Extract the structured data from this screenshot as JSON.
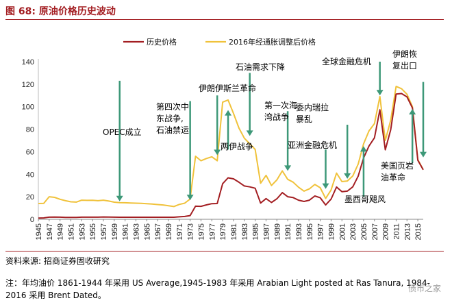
{
  "figure": {
    "title": "图 68:  原油价格历史波动",
    "source": "资料来源:  招商证券固收研究",
    "note": "注：年均油价 1861-1944 年采用 US Average,1945-1983 年采用 Arabian Light posted at Ras Tanura, 1984-2016 采用 Brent Dated。",
    "watermark": "债市之家"
  },
  "colors": {
    "nominal": "#a31e22",
    "real": "#f0c23b",
    "arrow": "#3d9878",
    "accent": "#a31e22"
  },
  "chart_data": {
    "type": "line",
    "title": "",
    "xlabel": "",
    "ylabel": "",
    "ylim": [
      0,
      140
    ],
    "yticks": [
      0,
      20,
      40,
      60,
      80,
      100,
      120,
      140
    ],
    "xlim": [
      1945,
      2016
    ],
    "xticks": [
      1945,
      1947,
      1949,
      1951,
      1953,
      1955,
      1957,
      1959,
      1961,
      1963,
      1965,
      1967,
      1969,
      1971,
      1973,
      1975,
      1977,
      1979,
      1981,
      1983,
      1985,
      1987,
      1989,
      1991,
      1993,
      1995,
      1997,
      1999,
      2001,
      2003,
      2005,
      2007,
      2009,
      2011,
      2013,
      2015
    ],
    "grid": false,
    "legend_position": "top-center",
    "series": [
      {
        "name": "历史价格",
        "color": "#a31e22",
        "points": [
          [
            1945,
            1.05
          ],
          [
            1946,
            1.2
          ],
          [
            1947,
            1.9
          ],
          [
            1948,
            2.0
          ],
          [
            1949,
            1.9
          ],
          [
            1950,
            1.7
          ],
          [
            1951,
            1.7
          ],
          [
            1952,
            1.7
          ],
          [
            1953,
            1.9
          ],
          [
            1954,
            1.9
          ],
          [
            1955,
            1.9
          ],
          [
            1956,
            1.9
          ],
          [
            1957,
            2.1
          ],
          [
            1958,
            2.0
          ],
          [
            1959,
            1.9
          ],
          [
            1960,
            1.8
          ],
          [
            1961,
            1.8
          ],
          [
            1962,
            1.8
          ],
          [
            1963,
            1.8
          ],
          [
            1964,
            1.8
          ],
          [
            1965,
            1.8
          ],
          [
            1966,
            1.8
          ],
          [
            1967,
            1.8
          ],
          [
            1968,
            1.8
          ],
          [
            1969,
            1.8
          ],
          [
            1970,
            1.8
          ],
          [
            1971,
            2.2
          ],
          [
            1972,
            2.5
          ],
          [
            1973,
            3.3
          ],
          [
            1974,
            11.6
          ],
          [
            1975,
            11.5
          ],
          [
            1976,
            12.8
          ],
          [
            1977,
            13.9
          ],
          [
            1978,
            14.0
          ],
          [
            1979,
            31.6
          ],
          [
            1980,
            36.8
          ],
          [
            1981,
            35.9
          ],
          [
            1982,
            32.9
          ],
          [
            1983,
            29.6
          ],
          [
            1984,
            28.8
          ],
          [
            1985,
            27.6
          ],
          [
            1986,
            14.4
          ],
          [
            1987,
            18.4
          ],
          [
            1988,
            14.9
          ],
          [
            1989,
            18.2
          ],
          [
            1990,
            23.7
          ],
          [
            1991,
            20.0
          ],
          [
            1992,
            19.3
          ],
          [
            1993,
            17.0
          ],
          [
            1994,
            15.8
          ],
          [
            1995,
            17.0
          ],
          [
            1996,
            20.7
          ],
          [
            1997,
            19.1
          ],
          [
            1998,
            12.7
          ],
          [
            1999,
            17.9
          ],
          [
            2000,
            28.7
          ],
          [
            2001,
            24.5
          ],
          [
            2002,
            25.0
          ],
          [
            2003,
            28.8
          ],
          [
            2004,
            38.3
          ],
          [
            2005,
            54.5
          ],
          [
            2006,
            65.1
          ],
          [
            2007,
            72.4
          ],
          [
            2008,
            97.3
          ],
          [
            2009,
            61.7
          ],
          [
            2010,
            79.5
          ],
          [
            2011,
            111.3
          ],
          [
            2012,
            111.7
          ],
          [
            2013,
            108.7
          ],
          [
            2014,
            99.0
          ],
          [
            2015,
            52.4
          ],
          [
            2016,
            44.0
          ]
        ]
      },
      {
        "name": "2016年经通胀调整后价格",
        "color": "#f0c23b",
        "points": [
          [
            1945,
            14.0
          ],
          [
            1946,
            14.2
          ],
          [
            1947,
            20.0
          ],
          [
            1948,
            19.5
          ],
          [
            1949,
            17.8
          ],
          [
            1950,
            16.5
          ],
          [
            1951,
            15.5
          ],
          [
            1952,
            15.3
          ],
          [
            1953,
            17.0
          ],
          [
            1954,
            16.8
          ],
          [
            1955,
            16.9
          ],
          [
            1956,
            16.5
          ],
          [
            1957,
            17.0
          ],
          [
            1958,
            16.2
          ],
          [
            1959,
            15.2
          ],
          [
            1960,
            14.8
          ],
          [
            1961,
            14.7
          ],
          [
            1962,
            14.5
          ],
          [
            1963,
            14.3
          ],
          [
            1964,
            14.2
          ],
          [
            1965,
            13.9
          ],
          [
            1966,
            13.5
          ],
          [
            1967,
            13.1
          ],
          [
            1968,
            12.7
          ],
          [
            1969,
            12.0
          ],
          [
            1970,
            11.3
          ],
          [
            1971,
            13.2
          ],
          [
            1972,
            14.3
          ],
          [
            1973,
            18.0
          ],
          [
            1974,
            56.0
          ],
          [
            1975,
            52.0
          ],
          [
            1976,
            54.0
          ],
          [
            1977,
            55.5
          ],
          [
            1978,
            52.0
          ],
          [
            1979,
            104.0
          ],
          [
            1980,
            106.0
          ],
          [
            1981,
            94.0
          ],
          [
            1982,
            81.0
          ],
          [
            1983,
            72.0
          ],
          [
            1984,
            67.0
          ],
          [
            1985,
            62.0
          ],
          [
            1986,
            32.0
          ],
          [
            1987,
            39.0
          ],
          [
            1988,
            30.0
          ],
          [
            1989,
            35.0
          ],
          [
            1990,
            43.0
          ],
          [
            1991,
            35.5
          ],
          [
            1992,
            33.0
          ],
          [
            1993,
            28.5
          ],
          [
            1994,
            25.0
          ],
          [
            1995,
            27.0
          ],
          [
            1996,
            31.0
          ],
          [
            1997,
            28.0
          ],
          [
            1998,
            18.5
          ],
          [
            1999,
            26.0
          ],
          [
            2000,
            41.0
          ],
          [
            2001,
            33.5
          ],
          [
            2002,
            34.0
          ],
          [
            2003,
            38.5
          ],
          [
            2004,
            49.0
          ],
          [
            2005,
            67.0
          ],
          [
            2006,
            78.5
          ],
          [
            2007,
            85.0
          ],
          [
            2008,
            109.0
          ],
          [
            2009,
            70.0
          ],
          [
            2010,
            88.0
          ],
          [
            2011,
            118.0
          ],
          [
            2012,
            116.0
          ],
          [
            2013,
            111.0
          ],
          [
            2014,
            100.0
          ],
          [
            2015,
            53.0
          ],
          [
            2016,
            44.0
          ]
        ]
      }
    ],
    "annotations": [
      {
        "lines": [
          "OPEC成立"
        ],
        "year": 1960,
        "tip": 16,
        "start": 123,
        "text_color": "#000000"
      },
      {
        "lines": [
          "第四次中",
          "东战争,",
          "石油禁运"
        ],
        "year": 1973,
        "tip": 17,
        "start": 105,
        "text_color": "#000000"
      },
      {
        "lines": [
          "伊朗伊斯兰革命"
        ],
        "year": 1978,
        "tip": 57,
        "start": 110,
        "text_color": "#000000"
      },
      {
        "lines": [
          "两伊战争"
        ],
        "year": 1980,
        "tip": 97,
        "start": 62,
        "text_color": "#000000"
      },
      {
        "lines": [
          "石油需求下降"
        ],
        "year": 1984,
        "tip": 74,
        "start": 130,
        "text_color": "#000000"
      },
      {
        "lines": [
          "第一次海",
          "湾战争"
        ],
        "year": 1991,
        "tip": 43,
        "start": 96,
        "text_color": "#000000"
      },
      {
        "lines": [
          "亚洲金融危机"
        ],
        "year": 1998,
        "tip": 27,
        "start": 62,
        "text_color": "#000000"
      },
      {
        "lines": [
          "委内瑞拉",
          "暴乱"
        ],
        "year": 2002,
        "tip": 36,
        "start": 84,
        "text_color": "#000000"
      },
      {
        "lines": [
          "墨西哥飓风"
        ],
        "year": 2005,
        "tip": 65,
        "start": 20,
        "text_color": "#000000"
      },
      {
        "lines": [
          "全球金融危机"
        ],
        "year": 2008,
        "tip": 110,
        "start": 140,
        "text_color": "#000000"
      },
      {
        "lines": [
          "美国页岩",
          "油革命"
        ],
        "year": 2014,
        "tip": 98,
        "start": 50,
        "text_color": "#000000"
      },
      {
        "lines": [
          "伊朗恢",
          "复出口"
        ],
        "year": 2016,
        "tip": 55,
        "start": 122,
        "text_color": "#000000"
      }
    ]
  }
}
